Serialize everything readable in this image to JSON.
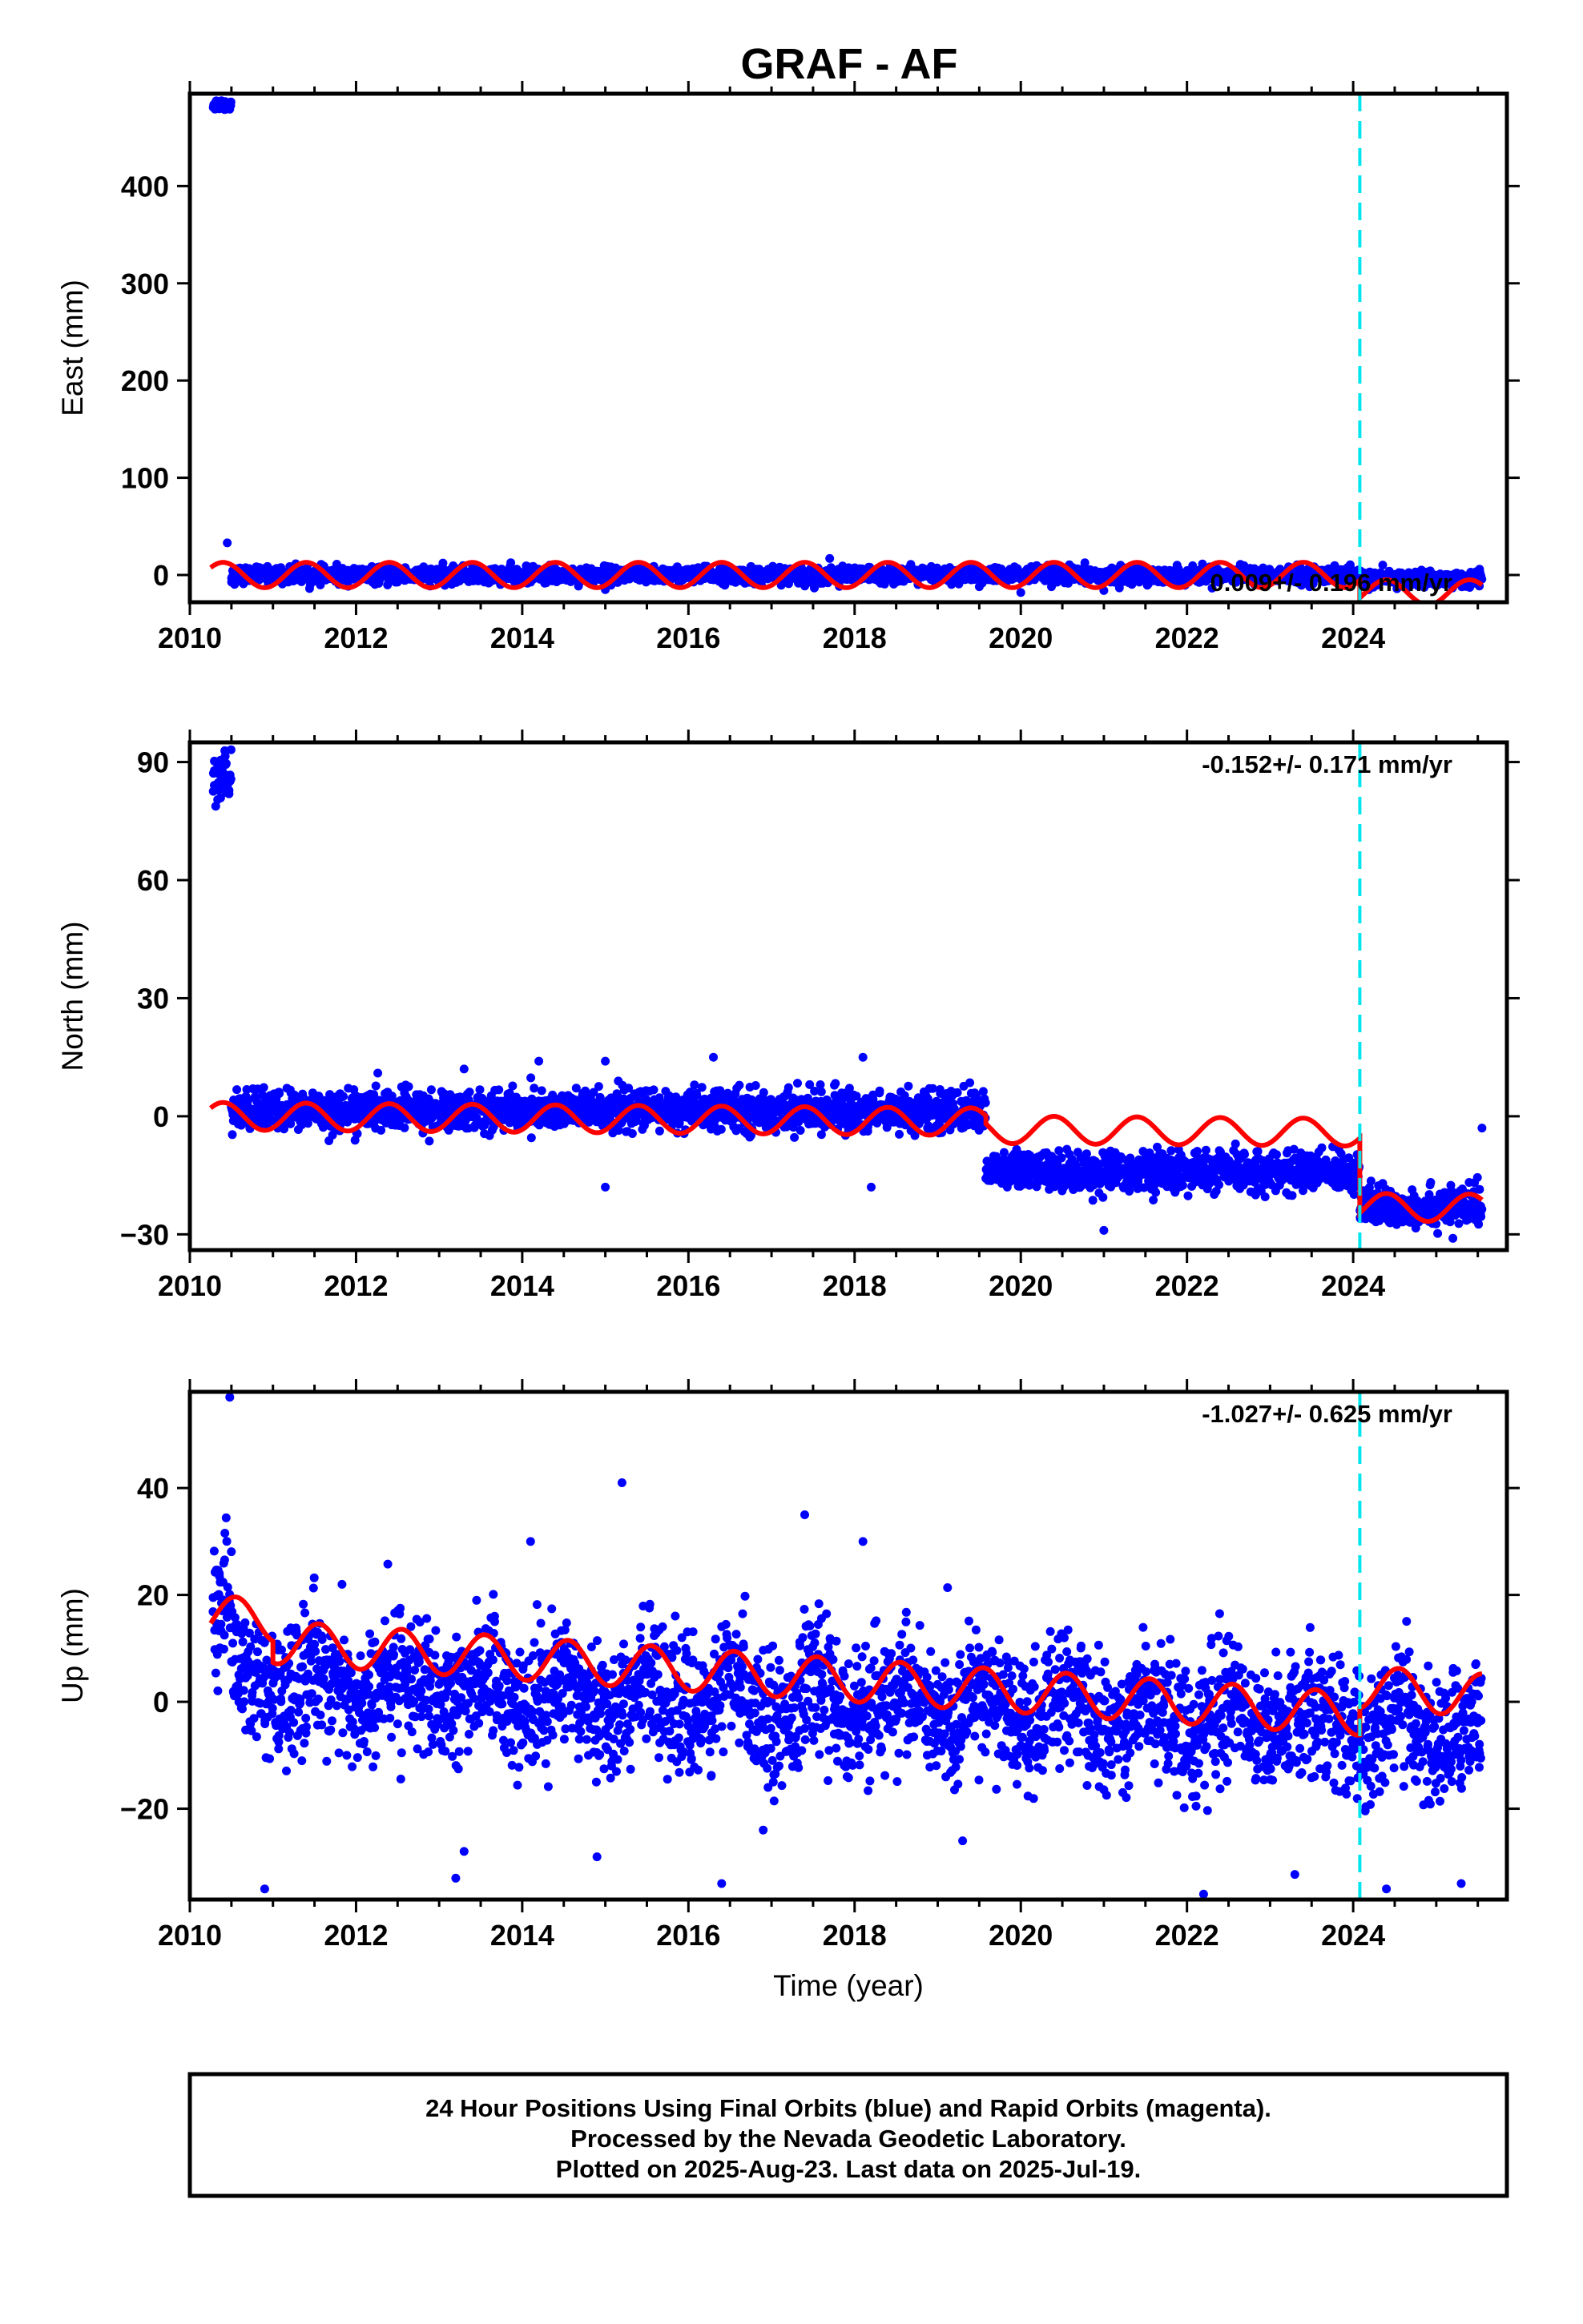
{
  "figure": {
    "title": "GRAF - AF",
    "footer_lines": [
      "24 Hour Positions Using Final Orbits (blue) and Rapid Orbits (magenta).",
      "Processed by the Nevada Geodetic Laboratory.",
      "Plotted on 2025-Aug-23. Last data on 2025-Jul-19."
    ]
  },
  "colors": {
    "final_orbit_points": "#0000ff",
    "model_fit": "#ff0000",
    "equipment_change_line": "#00e5ee",
    "frame": "#000000"
  },
  "chart_data": [
    {
      "type": "scatter",
      "component": "east",
      "ylabel": "East (mm)",
      "xlabel": "",
      "xlim": [
        2010,
        2025.85
      ],
      "ylim": [
        -28,
        495
      ],
      "x_ticks": [
        2010,
        2012,
        2014,
        2016,
        2018,
        2020,
        2022,
        2024
      ],
      "y_ticks": [
        0,
        100,
        200,
        300,
        400
      ],
      "rate_label": "0.009+/- 0.196 mm/yr",
      "rate_label_position": "bottom-right",
      "equipment_change_year": 2024.08,
      "model": {
        "offset_segments": [
          {
            "from": 2010.25,
            "to": 2024.08,
            "value": 0
          },
          {
            "from": 2024.08,
            "to": 2025.55,
            "value": -18
          }
        ],
        "trend_mm_per_yr": 0.009,
        "annual_amplitude_mm": 13,
        "annual_peak_phase": 0.4
      },
      "series": [
        {
          "name": "Final Orbits",
          "segments": [
            {
              "from": 2010.28,
              "to": 2010.5,
              "mean": 484,
              "scatter": 3
            },
            {
              "from": 2010.5,
              "to": 2024.08,
              "mean": 0,
              "scatter": 4
            },
            {
              "from": 2024.08,
              "to": 2025.55,
              "mean": -4,
              "scatter": 4
            }
          ],
          "outliers": [
            [
              2010.45,
              33
            ],
            [
              2015.0,
              -15
            ],
            [
              2017.7,
              17
            ],
            [
              2020.0,
              -18
            ],
            [
              2021.0,
              -16
            ],
            [
              2019.5,
              -12
            ]
          ]
        }
      ]
    },
    {
      "type": "scatter",
      "component": "north",
      "ylabel": "North (mm)",
      "xlabel": "",
      "xlim": [
        2010,
        2025.85
      ],
      "ylim": [
        -34,
        95
      ],
      "x_ticks": [
        2010,
        2012,
        2014,
        2016,
        2018,
        2020,
        2022,
        2024
      ],
      "y_ticks": [
        -30,
        0,
        30,
        60,
        90
      ],
      "rate_label": "-0.152+/- 0.171 mm/yr",
      "rate_label_position": "top-right",
      "equipment_change_year": 2024.08,
      "model": {
        "offset_segments": [
          {
            "from": 2010.25,
            "to": 2019.58,
            "value": -1
          },
          {
            "from": 2019.58,
            "to": 2024.08,
            "value": -3
          },
          {
            "from": 2024.08,
            "to": 2025.55,
            "value": -22
          }
        ],
        "trend_mm_per_yr": -0.152,
        "annual_amplitude_mm": 3.5,
        "annual_peak_phase": 0.4
      },
      "series": [
        {
          "name": "Final Orbits",
          "segments": [
            {
              "from": 2010.28,
              "to": 2010.5,
              "mean": 86,
              "scatter": 3
            },
            {
              "from": 2010.5,
              "to": 2019.58,
              "mean": 1.5,
              "scatter": 2.5
            },
            {
              "from": 2019.58,
              "to": 2024.08,
              "mean": -14,
              "scatter": 2.5
            },
            {
              "from": 2024.08,
              "to": 2025.55,
              "mean": -23,
              "scatter": 2.5
            }
          ],
          "outliers": [
            [
              2016.3,
              15
            ],
            [
              2018.1,
              15
            ],
            [
              2015.0,
              14
            ],
            [
              2015.0,
              -18
            ],
            [
              2018.2,
              -18
            ],
            [
              2021.0,
              -29
            ],
            [
              2025.2,
              -31
            ],
            [
              2025.55,
              -3
            ],
            [
              2013.3,
              12
            ],
            [
              2014.2,
              14
            ]
          ]
        }
      ]
    },
    {
      "type": "scatter",
      "component": "up",
      "ylabel": "Up (mm)",
      "xlabel": "Time (year)",
      "xlim": [
        2010,
        2025.85
      ],
      "ylim": [
        -37,
        58
      ],
      "x_ticks": [
        2010,
        2012,
        2014,
        2016,
        2018,
        2020,
        2022,
        2024
      ],
      "y_ticks": [
        -20,
        0,
        20,
        40
      ],
      "rate_label": "-1.027+/- 0.625 mm/yr",
      "rate_label_position": "top-right",
      "equipment_change_year": 2024.08,
      "model": {
        "offset_segments": [
          {
            "from": 2010.25,
            "to": 2011.0,
            "value": 9
          },
          {
            "from": 2011.0,
            "to": 2024.08,
            "value": 5
          },
          {
            "from": 2024.08,
            "to": 2025.55,
            "value": 10
          }
        ],
        "trend_mm_per_yr": -1.027,
        "annual_amplitude_mm": 4,
        "annual_peak_phase": 0.55
      },
      "series": [
        {
          "name": "Final Orbits",
          "segments": [
            {
              "from": 2010.28,
              "to": 2010.5,
              "mean": 18,
              "scatter": 6
            },
            {
              "from": 2010.5,
              "to": 2024.08,
              "mean": 0,
              "scatter": 6
            },
            {
              "from": 2024.08,
              "to": 2025.55,
              "mean": -5,
              "scatter": 6
            }
          ],
          "outliers": [
            [
              2010.48,
              57
            ],
            [
              2015.2,
              41
            ],
            [
              2017.4,
              35
            ],
            [
              2014.1,
              30
            ],
            [
              2018.1,
              30
            ],
            [
              2010.9,
              -35
            ],
            [
              2013.2,
              -33
            ],
            [
              2016.4,
              -34
            ],
            [
              2022.2,
              -36
            ],
            [
              2024.4,
              -35
            ],
            [
              2025.3,
              -34
            ],
            [
              2014.9,
              -29
            ],
            [
              2016.9,
              -24
            ],
            [
              2019.3,
              -26
            ],
            [
              2013.3,
              -28
            ]
          ]
        }
      ]
    }
  ]
}
